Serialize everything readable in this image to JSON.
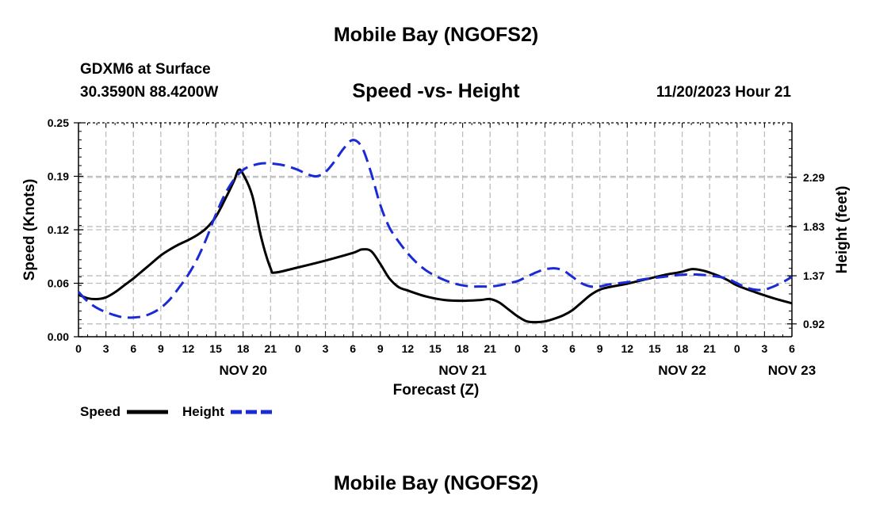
{
  "header": {
    "title": "Mobile Bay (NGOFS2)",
    "station": "GDXM6 at Surface",
    "location": "30.3590N  88.4200W",
    "subtitle": "Speed -vs- Height",
    "datetime": "11/20/2023 Hour 21",
    "footer_title": "Mobile Bay (NGOFS2)"
  },
  "chart_data": {
    "type": "line",
    "xlabel": "Forecast (Z)",
    "ylabel_left": "Speed (Knots)",
    "ylabel_right": "Height (feet)",
    "x_hours": [
      0,
      78
    ],
    "x_tick_labels": [
      "0",
      "3",
      "6",
      "9",
      "12",
      "15",
      "18",
      "21",
      "0",
      "3",
      "6",
      "9",
      "12",
      "15",
      "18",
      "21",
      "0",
      "3",
      "6",
      "9",
      "12",
      "15",
      "18",
      "21",
      "0",
      "3",
      "6"
    ],
    "day_labels": [
      {
        "hour": 18,
        "label": "NOV 20"
      },
      {
        "hour": 42,
        "label": "NOV 21"
      },
      {
        "hour": 66,
        "label": "NOV 22"
      },
      {
        "hour": 78,
        "label": "NOV 23"
      }
    ],
    "ylim_left": [
      0,
      0.25
    ],
    "yticks_left": [
      {
        "value": 0.0,
        "label": "0.00"
      },
      {
        "value": 0.0625,
        "label": "0.06"
      },
      {
        "value": 0.125,
        "label": "0.12"
      },
      {
        "value": 0.1875,
        "label": "0.19"
      },
      {
        "value": 0.25,
        "label": "0.25"
      }
    ],
    "ylim_right": [
      0.8,
      2.8
    ],
    "yticks_right": [
      {
        "value": 0.92,
        "label": "0.92"
      },
      {
        "value": 1.37,
        "label": "1.37"
      },
      {
        "value": 1.83,
        "label": "1.83"
      },
      {
        "value": 2.29,
        "label": "2.29"
      }
    ],
    "grid": true,
    "legend": "bottom-left",
    "series": [
      {
        "name": "Speed",
        "axis": "left",
        "color": "#000000",
        "style": "solid",
        "points": [
          [
            0,
            0.049
          ],
          [
            1,
            0.045
          ],
          [
            2,
            0.044
          ],
          [
            3,
            0.046
          ],
          [
            4,
            0.052
          ],
          [
            5,
            0.06
          ],
          [
            6,
            0.068
          ],
          [
            7,
            0.077
          ],
          [
            8,
            0.086
          ],
          [
            9,
            0.095
          ],
          [
            10,
            0.102
          ],
          [
            11,
            0.108
          ],
          [
            12,
            0.113
          ],
          [
            13,
            0.119
          ],
          [
            14,
            0.127
          ],
          [
            15,
            0.14
          ],
          [
            16,
            0.16
          ],
          [
            17,
            0.182
          ],
          [
            17.5,
            0.195
          ],
          [
            18,
            0.19
          ],
          [
            19,
            0.165
          ],
          [
            20,
            0.115
          ],
          [
            21,
            0.08
          ],
          [
            21.5,
            0.075
          ],
          [
            24,
            0.081
          ],
          [
            27,
            0.089
          ],
          [
            30,
            0.098
          ],
          [
            31,
            0.102
          ],
          [
            32,
            0.1
          ],
          [
            33,
            0.085
          ],
          [
            34,
            0.068
          ],
          [
            35,
            0.058
          ],
          [
            36,
            0.054
          ],
          [
            38,
            0.047
          ],
          [
            40,
            0.043
          ],
          [
            42,
            0.042
          ],
          [
            44,
            0.043
          ],
          [
            45,
            0.044
          ],
          [
            46,
            0.04
          ],
          [
            47,
            0.032
          ],
          [
            48,
            0.024
          ],
          [
            49,
            0.018
          ],
          [
            50,
            0.017
          ],
          [
            51,
            0.018
          ],
          [
            52,
            0.021
          ],
          [
            53,
            0.025
          ],
          [
            54,
            0.031
          ],
          [
            55,
            0.04
          ],
          [
            56,
            0.049
          ],
          [
            57,
            0.055
          ],
          [
            58,
            0.058
          ],
          [
            60,
            0.062
          ],
          [
            62,
            0.067
          ],
          [
            64,
            0.072
          ],
          [
            66,
            0.076
          ],
          [
            67,
            0.079
          ],
          [
            68,
            0.078
          ],
          [
            69,
            0.075
          ],
          [
            70,
            0.071
          ],
          [
            71,
            0.066
          ],
          [
            72,
            0.06
          ],
          [
            74,
            0.052
          ],
          [
            76,
            0.045
          ],
          [
            78,
            0.039
          ]
        ]
      },
      {
        "name": "Height",
        "axis": "right",
        "color": "#1a2ad6",
        "style": "dashed",
        "points": [
          [
            0,
            1.22
          ],
          [
            1,
            1.13
          ],
          [
            2,
            1.07
          ],
          [
            3,
            1.03
          ],
          [
            4,
            1.0
          ],
          [
            5,
            0.98
          ],
          [
            6,
            0.98
          ],
          [
            7,
            0.99
          ],
          [
            8,
            1.02
          ],
          [
            9,
            1.07
          ],
          [
            10,
            1.15
          ],
          [
            11,
            1.26
          ],
          [
            12,
            1.38
          ],
          [
            13,
            1.53
          ],
          [
            14,
            1.72
          ],
          [
            15,
            1.94
          ],
          [
            16,
            2.13
          ],
          [
            17,
            2.27
          ],
          [
            18,
            2.36
          ],
          [
            19,
            2.4
          ],
          [
            20,
            2.42
          ],
          [
            21,
            2.42
          ],
          [
            22,
            2.41
          ],
          [
            23,
            2.39
          ],
          [
            24,
            2.36
          ],
          [
            25,
            2.32
          ],
          [
            26,
            2.3
          ],
          [
            27,
            2.34
          ],
          [
            28,
            2.44
          ],
          [
            29,
            2.56
          ],
          [
            30,
            2.64
          ],
          [
            31,
            2.57
          ],
          [
            32,
            2.33
          ],
          [
            33,
            2.03
          ],
          [
            34,
            1.82
          ],
          [
            35,
            1.69
          ],
          [
            36,
            1.58
          ],
          [
            37,
            1.49
          ],
          [
            38,
            1.42
          ],
          [
            39,
            1.37
          ],
          [
            40,
            1.33
          ],
          [
            41,
            1.3
          ],
          [
            42,
            1.28
          ],
          [
            43,
            1.27
          ],
          [
            44,
            1.27
          ],
          [
            45,
            1.27
          ],
          [
            46,
            1.28
          ],
          [
            47,
            1.3
          ],
          [
            48,
            1.32
          ],
          [
            49,
            1.36
          ],
          [
            50,
            1.4
          ],
          [
            51,
            1.43
          ],
          [
            52,
            1.44
          ],
          [
            53,
            1.42
          ],
          [
            54,
            1.36
          ],
          [
            55,
            1.3
          ],
          [
            56,
            1.27
          ],
          [
            57,
            1.27
          ],
          [
            58,
            1.29
          ],
          [
            60,
            1.31
          ],
          [
            62,
            1.34
          ],
          [
            64,
            1.36
          ],
          [
            66,
            1.38
          ],
          [
            68,
            1.38
          ],
          [
            70,
            1.36
          ],
          [
            71,
            1.34
          ],
          [
            72,
            1.3
          ],
          [
            73,
            1.26
          ],
          [
            74,
            1.24
          ],
          [
            75,
            1.24
          ],
          [
            76,
            1.27
          ],
          [
            77,
            1.31
          ],
          [
            78,
            1.36
          ]
        ]
      }
    ]
  }
}
